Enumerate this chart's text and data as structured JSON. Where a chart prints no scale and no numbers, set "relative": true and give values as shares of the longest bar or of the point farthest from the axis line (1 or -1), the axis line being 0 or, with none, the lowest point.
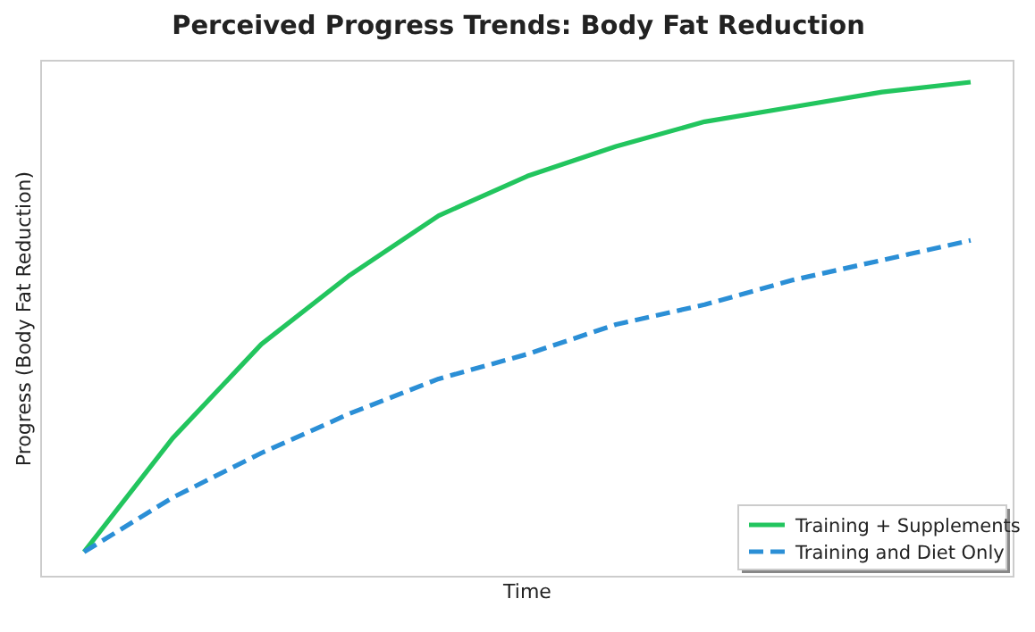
{
  "chart_data": {
    "type": "line",
    "title": "Perceived Progress Trends: Body Fat Reduction",
    "xlabel": "Time",
    "ylabel": "Progress (Body Fat Reduction)",
    "relative": true,
    "legend": "bottom right",
    "categories": [
      null,
      null,
      null,
      null,
      null,
      null,
      null,
      null,
      null,
      null,
      null
    ],
    "series": [
      {
        "name": "Training + Supplements",
        "color": "#22c55e",
        "line_style": "solid",
        "values": [
          0.05,
          0.28,
          0.47,
          0.61,
          0.73,
          0.81,
          0.87,
          0.92,
          0.95,
          0.98,
          1
        ]
      },
      {
        "name": "Training and Diet Only",
        "color": "#2b8fd6",
        "line_style": "dashed",
        "values": [
          0.05,
          0.16,
          0.25,
          0.33,
          0.4,
          0.45,
          0.51,
          0.55,
          0.6,
          0.64,
          0.68
        ]
      }
    ]
  }
}
